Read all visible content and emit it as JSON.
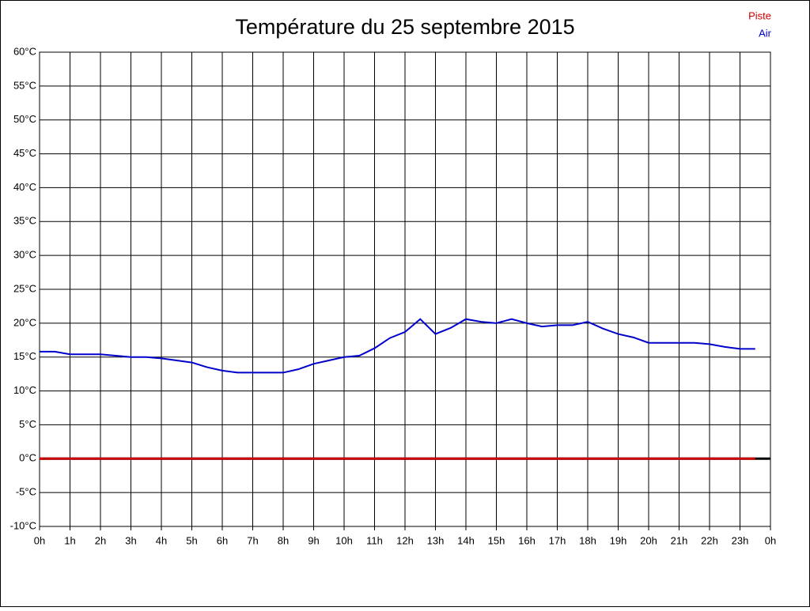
{
  "chart_data": {
    "type": "line",
    "title": "Température du 25 septembre 2015",
    "x": [
      0,
      0.5,
      1,
      1.5,
      2,
      2.5,
      3,
      3.5,
      4,
      4.5,
      5,
      5.5,
      6,
      6.5,
      7,
      7.5,
      8,
      8.5,
      9,
      9.5,
      10,
      10.5,
      11,
      11.5,
      12,
      12.5,
      13,
      13.5,
      14,
      14.5,
      15,
      15.5,
      16,
      16.5,
      17,
      17.5,
      18,
      18.5,
      19,
      19.5,
      20,
      20.5,
      21,
      21.5,
      22,
      22.5,
      23,
      23.5
    ],
    "series": [
      {
        "name": "Piste",
        "color": "#cc0000",
        "values": [
          0,
          0,
          0,
          0,
          0,
          0,
          0,
          0,
          0,
          0,
          0,
          0,
          0,
          0,
          0,
          0,
          0,
          0,
          0,
          0,
          0,
          0,
          0,
          0,
          0,
          0,
          0,
          0,
          0,
          0,
          0,
          0,
          0,
          0,
          0,
          0,
          0,
          0,
          0,
          0,
          0,
          0,
          0,
          0,
          0,
          0,
          0,
          0
        ]
      },
      {
        "name": "Air",
        "color": "#0000cc",
        "values": [
          15.8,
          15.8,
          15.4,
          15.4,
          15.4,
          15.2,
          15.0,
          15.0,
          14.8,
          14.5,
          14.2,
          13.5,
          13.0,
          12.7,
          12.7,
          12.7,
          12.7,
          13.2,
          14.0,
          14.5,
          15.0,
          15.2,
          16.3,
          17.8,
          18.7,
          20.6,
          18.4,
          19.3,
          20.6,
          20.2,
          20.0,
          20.6,
          20.0,
          19.5,
          19.7,
          19.7,
          20.2,
          19.2,
          18.4,
          17.9,
          17.1,
          17.1,
          17.1,
          17.1,
          16.9,
          16.5,
          16.2,
          16.2
        ]
      }
    ],
    "xlim": [
      0,
      24
    ],
    "xticks": [
      {
        "value": 0,
        "label": "0h"
      },
      {
        "value": 1,
        "label": "1h"
      },
      {
        "value": 2,
        "label": "2h"
      },
      {
        "value": 3,
        "label": "3h"
      },
      {
        "value": 4,
        "label": "4h"
      },
      {
        "value": 5,
        "label": "5h"
      },
      {
        "value": 6,
        "label": "6h"
      },
      {
        "value": 7,
        "label": "7h"
      },
      {
        "value": 8,
        "label": "8h"
      },
      {
        "value": 9,
        "label": "9h"
      },
      {
        "value": 10,
        "label": "10h"
      },
      {
        "value": 11,
        "label": "11h"
      },
      {
        "value": 12,
        "label": "12h"
      },
      {
        "value": 13,
        "label": "13h"
      },
      {
        "value": 14,
        "label": "14h"
      },
      {
        "value": 15,
        "label": "15h"
      },
      {
        "value": 16,
        "label": "16h"
      },
      {
        "value": 17,
        "label": "17h"
      },
      {
        "value": 18,
        "label": "18h"
      },
      {
        "value": 19,
        "label": "19h"
      },
      {
        "value": 20,
        "label": "20h"
      },
      {
        "value": 21,
        "label": "21h"
      },
      {
        "value": 22,
        "label": "22h"
      },
      {
        "value": 23,
        "label": "23h"
      },
      {
        "value": 24,
        "label": "0h"
      }
    ],
    "ylim": [
      -10,
      60
    ],
    "yticks": [
      {
        "value": -10,
        "label": "-10°C"
      },
      {
        "value": -5,
        "label": "-5°C"
      },
      {
        "value": 0,
        "label": "0°C"
      },
      {
        "value": 5,
        "label": "5°C"
      },
      {
        "value": 10,
        "label": "10°C"
      },
      {
        "value": 15,
        "label": "15°C"
      },
      {
        "value": 20,
        "label": "20°C"
      },
      {
        "value": 25,
        "label": "25°C"
      },
      {
        "value": 30,
        "label": "30°C"
      },
      {
        "value": 35,
        "label": "35°C"
      },
      {
        "value": 40,
        "label": "40°C"
      },
      {
        "value": 45,
        "label": "45°C"
      },
      {
        "value": 50,
        "label": "50°C"
      },
      {
        "value": 55,
        "label": "55°C"
      },
      {
        "value": 60,
        "label": "60°C"
      }
    ],
    "grid": true,
    "legend": "top-right"
  }
}
